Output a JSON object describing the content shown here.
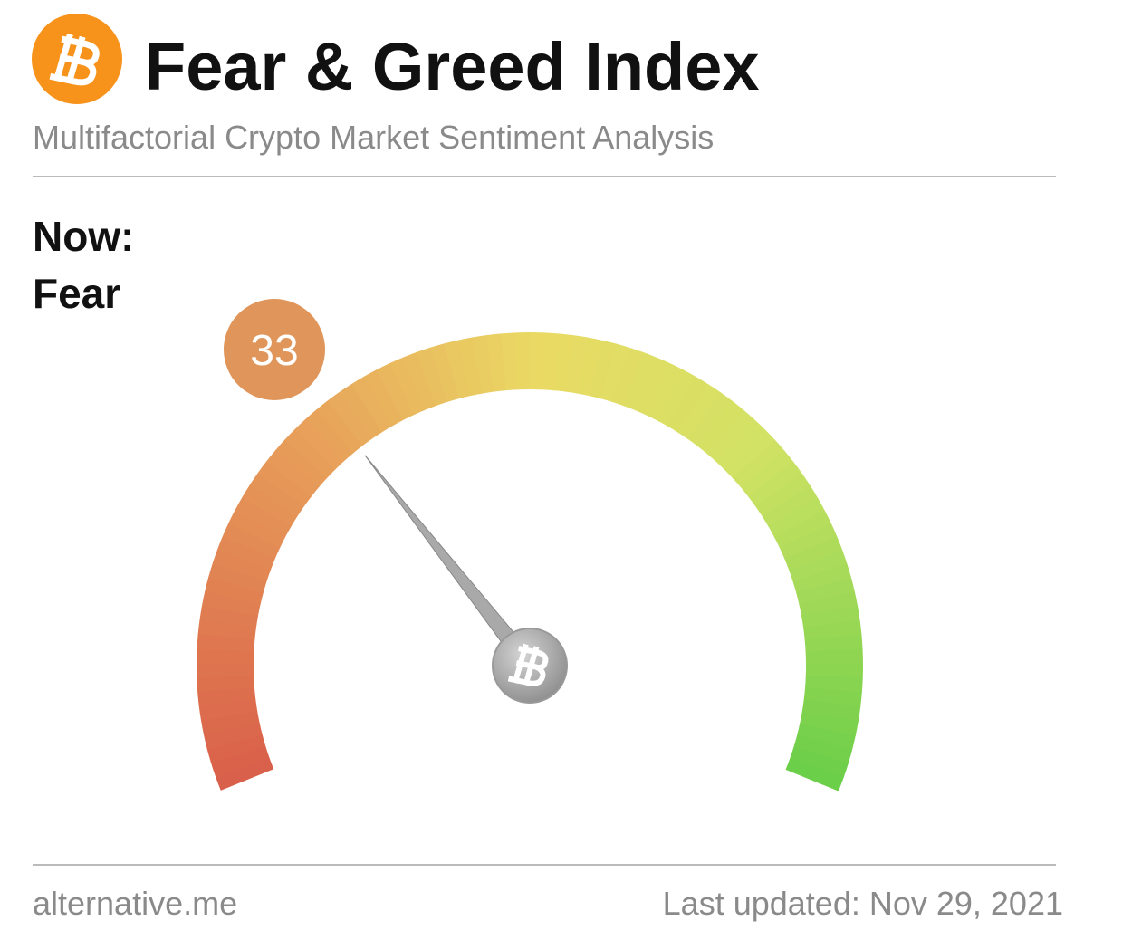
{
  "chart_data": {
    "type": "gauge",
    "title": "Fear & Greed Index",
    "subtitle": "Multifactorial Crypto Market Sentiment Analysis",
    "now_label": "Now:",
    "classification": "Fear",
    "value": 33,
    "ylim": [
      0,
      100
    ],
    "color": "#e0955a",
    "source": "alternative.me",
    "updated": "Last updated: Nov 29, 2021"
  }
}
